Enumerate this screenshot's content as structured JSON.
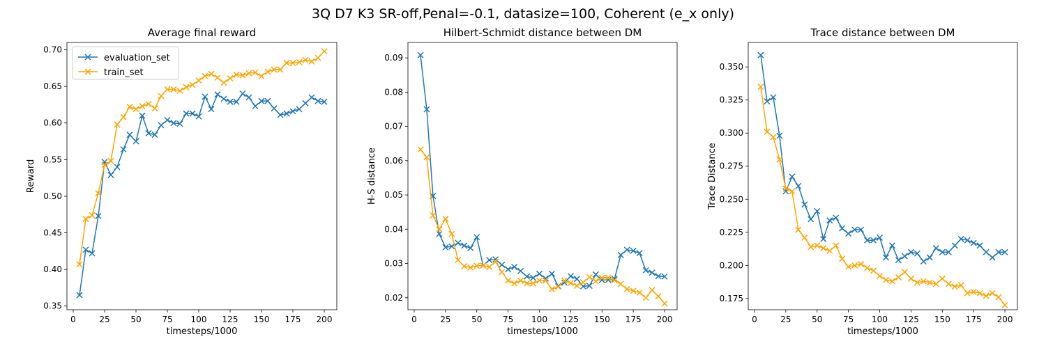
{
  "figure": {
    "suptitle": "3Q D7 K3 SR-off,Penal=-0.1, datasize=100, Coherent (e_x only)"
  },
  "colors": {
    "evaluation_set": "#1f77b4",
    "train_set": "#ffa500"
  },
  "chart_data": [
    {
      "type": "line",
      "title": "Average final reward",
      "xlabel": "timesteps/1000",
      "ylabel": "Reward",
      "xlim": [
        -5,
        210
      ],
      "ylim": [
        0.345,
        0.71
      ],
      "xticks": [
        0,
        25,
        50,
        75,
        100,
        125,
        150,
        175,
        200
      ],
      "yticks": [
        0.35,
        0.4,
        0.45,
        0.5,
        0.55,
        0.6,
        0.65,
        0.7
      ],
      "ytick_labels": [
        "0.35",
        "0.40",
        "0.45",
        "0.50",
        "0.55",
        "0.60",
        "0.65",
        "0.70"
      ],
      "legend": "upper-left",
      "x": [
        5,
        10,
        15,
        20,
        25,
        30,
        35,
        40,
        45,
        50,
        55,
        60,
        65,
        70,
        75,
        80,
        85,
        90,
        95,
        100,
        105,
        110,
        115,
        120,
        125,
        130,
        135,
        140,
        145,
        150,
        155,
        160,
        165,
        170,
        175,
        180,
        185,
        190,
        195,
        200
      ],
      "series": [
        {
          "name": "evaluation_set",
          "color": "#1f77b4",
          "values": [
            0.365,
            0.427,
            0.422,
            0.473,
            0.547,
            0.529,
            0.54,
            0.564,
            0.584,
            0.575,
            0.61,
            0.586,
            0.584,
            0.597,
            0.604,
            0.6,
            0.599,
            0.613,
            0.613,
            0.609,
            0.636,
            0.619,
            0.639,
            0.633,
            0.629,
            0.629,
            0.64,
            0.635,
            0.623,
            0.63,
            0.63,
            0.62,
            0.611,
            0.613,
            0.616,
            0.619,
            0.627,
            0.635,
            0.63,
            0.629
          ]
        },
        {
          "name": "train_set",
          "color": "#ffa500",
          "values": [
            0.407,
            0.469,
            0.474,
            0.504,
            0.543,
            0.548,
            0.598,
            0.608,
            0.622,
            0.619,
            0.623,
            0.626,
            0.62,
            0.637,
            0.646,
            0.646,
            0.644,
            0.649,
            0.652,
            0.658,
            0.664,
            0.667,
            0.662,
            0.655,
            0.661,
            0.666,
            0.665,
            0.668,
            0.669,
            0.664,
            0.67,
            0.673,
            0.673,
            0.682,
            0.682,
            0.683,
            0.686,
            0.684,
            0.689,
            0.698
          ]
        }
      ]
    },
    {
      "type": "line",
      "title": "Hilbert-Schmidt distance between DM",
      "xlabel": "timesteps/1000",
      "ylabel": "H-S distance",
      "xlim": [
        -5,
        210
      ],
      "ylim": [
        0.0165,
        0.0945
      ],
      "xticks": [
        0,
        25,
        50,
        75,
        100,
        125,
        150,
        175,
        200
      ],
      "yticks": [
        0.02,
        0.03,
        0.04,
        0.05,
        0.06,
        0.07,
        0.08,
        0.09
      ],
      "ytick_labels": [
        "0.02",
        "0.03",
        "0.04",
        "0.05",
        "0.06",
        "0.07",
        "0.08",
        "0.09"
      ],
      "x": [
        5,
        10,
        15,
        20,
        25,
        30,
        35,
        40,
        45,
        50,
        55,
        60,
        65,
        70,
        75,
        80,
        85,
        90,
        95,
        100,
        105,
        110,
        115,
        120,
        125,
        130,
        135,
        140,
        145,
        150,
        155,
        160,
        165,
        170,
        175,
        180,
        185,
        190,
        195,
        200
      ],
      "series": [
        {
          "name": "evaluation_set",
          "color": "#1f77b4",
          "values": [
            0.0908,
            0.075,
            0.0497,
            0.0386,
            0.0347,
            0.035,
            0.036,
            0.0352,
            0.0345,
            0.0377,
            0.0294,
            0.031,
            0.0312,
            0.0296,
            0.0283,
            0.029,
            0.0278,
            0.0262,
            0.0258,
            0.027,
            0.0256,
            0.027,
            0.0234,
            0.0244,
            0.0263,
            0.0255,
            0.0233,
            0.0235,
            0.0268,
            0.0252,
            0.0252,
            0.0255,
            0.0325,
            0.034,
            0.0337,
            0.033,
            0.028,
            0.0273,
            0.0263,
            0.0262
          ]
        },
        {
          "name": "train_set",
          "color": "#ffa500",
          "values": [
            0.0633,
            0.061,
            0.044,
            0.04,
            0.043,
            0.0386,
            0.031,
            0.0292,
            0.0288,
            0.0293,
            0.0294,
            0.029,
            0.0305,
            0.0275,
            0.025,
            0.0242,
            0.025,
            0.0242,
            0.0242,
            0.025,
            0.025,
            0.0225,
            0.0232,
            0.025,
            0.0243,
            0.0235,
            0.0245,
            0.026,
            0.0248,
            0.0258,
            0.0258,
            0.0251,
            0.024,
            0.0225,
            0.022,
            0.0215,
            0.02,
            0.0222,
            0.0204,
            0.0183
          ]
        }
      ]
    },
    {
      "type": "line",
      "title": "Trace distance between DM",
      "xlabel": "timesteps/1000",
      "ylabel": "Trace Distance",
      "xlim": [
        -5,
        210
      ],
      "ylim": [
        0.1665,
        0.3685
      ],
      "xticks": [
        0,
        25,
        50,
        75,
        100,
        125,
        150,
        175,
        200
      ],
      "yticks": [
        0.175,
        0.2,
        0.225,
        0.25,
        0.275,
        0.3,
        0.325,
        0.35
      ],
      "ytick_labels": [
        "0.175",
        "0.200",
        "0.225",
        "0.250",
        "0.275",
        "0.300",
        "0.325",
        "0.350"
      ],
      "x": [
        5,
        10,
        15,
        20,
        25,
        30,
        35,
        40,
        45,
        50,
        55,
        60,
        65,
        70,
        75,
        80,
        85,
        90,
        95,
        100,
        105,
        110,
        115,
        120,
        125,
        130,
        135,
        140,
        145,
        150,
        155,
        160,
        165,
        170,
        175,
        180,
        185,
        190,
        195,
        200
      ],
      "series": [
        {
          "name": "evaluation_set",
          "color": "#1f77b4",
          "values": [
            0.359,
            0.324,
            0.327,
            0.298,
            0.256,
            0.267,
            0.26,
            0.246,
            0.235,
            0.241,
            0.22,
            0.234,
            0.236,
            0.228,
            0.224,
            0.227,
            0.227,
            0.219,
            0.219,
            0.221,
            0.206,
            0.215,
            0.204,
            0.207,
            0.21,
            0.209,
            0.203,
            0.206,
            0.213,
            0.21,
            0.21,
            0.215,
            0.22,
            0.219,
            0.217,
            0.215,
            0.21,
            0.206,
            0.21,
            0.21
          ]
        },
        {
          "name": "train_set",
          "color": "#ffa500",
          "values": [
            0.335,
            0.301,
            0.297,
            0.28,
            0.258,
            0.256,
            0.227,
            0.221,
            0.214,
            0.215,
            0.213,
            0.211,
            0.215,
            0.205,
            0.199,
            0.2,
            0.201,
            0.198,
            0.196,
            0.192,
            0.189,
            0.188,
            0.191,
            0.195,
            0.19,
            0.187,
            0.188,
            0.187,
            0.186,
            0.19,
            0.186,
            0.184,
            0.185,
            0.179,
            0.18,
            0.179,
            0.177,
            0.179,
            0.176,
            0.17
          ]
        }
      ]
    }
  ]
}
